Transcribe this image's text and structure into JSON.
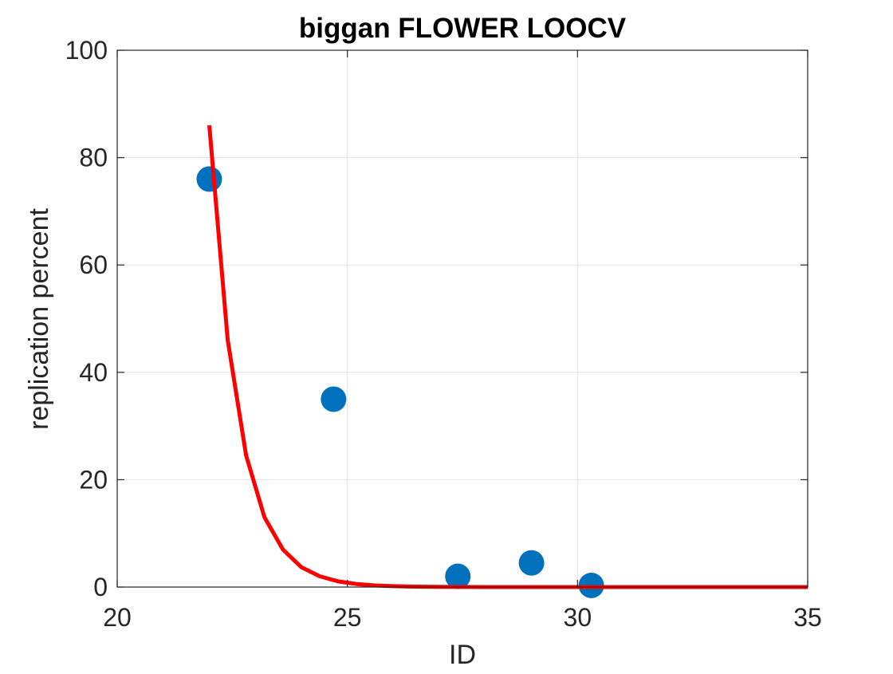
{
  "chart_data": {
    "type": "scatter",
    "title": "biggan FLOWER LOOCV",
    "xlabel": "ID",
    "ylabel": "replication percent",
    "xlim": [
      20,
      35
    ],
    "ylim": [
      0,
      100
    ],
    "xticks": [
      20,
      25,
      30,
      35
    ],
    "yticks": [
      0,
      20,
      40,
      60,
      80,
      100
    ],
    "grid": true,
    "series": [
      {
        "kind": "scatter",
        "color": "#0072BD",
        "x": [
          22.0,
          24.7,
          27.4,
          29.0,
          30.3
        ],
        "y": [
          76.0,
          35.0,
          2.0,
          4.5,
          0.3
        ]
      },
      {
        "kind": "line",
        "color": "#FF0000",
        "x": [
          22.0,
          22.4,
          22.8,
          23.2,
          23.6,
          24.0,
          24.4,
          24.8,
          25.2,
          25.6,
          26.0,
          26.5,
          27.0,
          28.0,
          29.0,
          30.0,
          31.0,
          32.0,
          33.0,
          34.0,
          35.0
        ],
        "y": [
          86.0,
          46.0,
          24.5,
          13.0,
          7.0,
          3.7,
          2.0,
          1.05,
          0.56,
          0.3,
          0.16,
          0.07,
          0.03,
          0.0,
          0.0,
          0.0,
          0.0,
          0.0,
          0.0,
          0.0,
          0.0
        ]
      }
    ]
  }
}
